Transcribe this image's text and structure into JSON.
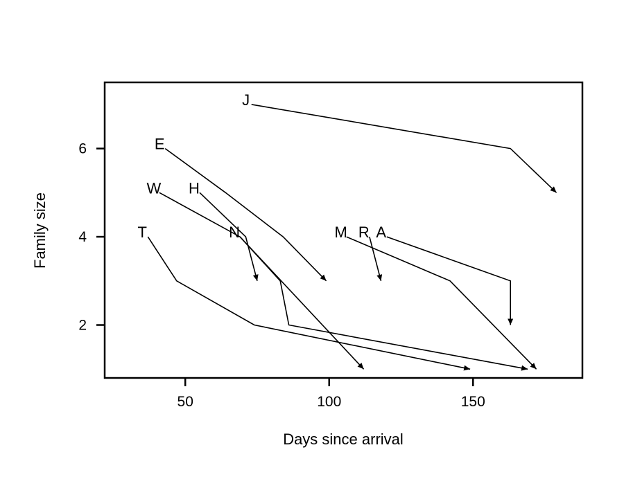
{
  "chart_data": {
    "type": "line",
    "title": "",
    "xlabel": "Days since arrival",
    "ylabel": "Family size",
    "xlim": [
      22,
      188
    ],
    "ylim": [
      0.8,
      7.5
    ],
    "x_ticks": [
      50,
      100,
      150
    ],
    "y_ticks": [
      2,
      4,
      6
    ],
    "grid": false,
    "legend": "none",
    "colors": {
      "line": "#000000",
      "axis": "#000000",
      "background": "#ffffff"
    },
    "series": [
      {
        "name": "J",
        "points": [
          [
            73,
            7
          ],
          [
            163,
            6
          ],
          [
            179,
            5
          ]
        ]
      },
      {
        "name": "E",
        "points": [
          [
            43,
            6
          ],
          [
            64,
            5
          ],
          [
            84,
            4
          ],
          [
            99,
            3
          ]
        ]
      },
      {
        "name": "W",
        "points": [
          [
            41,
            5
          ],
          [
            69,
            4
          ],
          [
            83,
            3
          ],
          [
            86,
            2
          ],
          [
            169,
            1
          ]
        ]
      },
      {
        "name": "H",
        "points": [
          [
            55,
            5
          ],
          [
            71,
            4
          ],
          [
            75,
            3
          ]
        ]
      },
      {
        "name": "N",
        "points": [
          [
            69,
            4
          ],
          [
            112,
            1
          ]
        ]
      },
      {
        "name": "T",
        "points": [
          [
            37,
            4
          ],
          [
            47,
            3
          ],
          [
            74,
            2
          ],
          [
            149,
            1
          ]
        ]
      },
      {
        "name": "M",
        "points": [
          [
            106,
            4
          ],
          [
            142,
            3
          ],
          [
            172,
            1
          ]
        ]
      },
      {
        "name": "R",
        "points": [
          [
            114,
            4
          ],
          [
            118,
            3
          ]
        ]
      },
      {
        "name": "A",
        "points": [
          [
            120,
            4
          ],
          [
            163,
            3
          ],
          [
            163,
            2
          ]
        ]
      }
    ]
  }
}
